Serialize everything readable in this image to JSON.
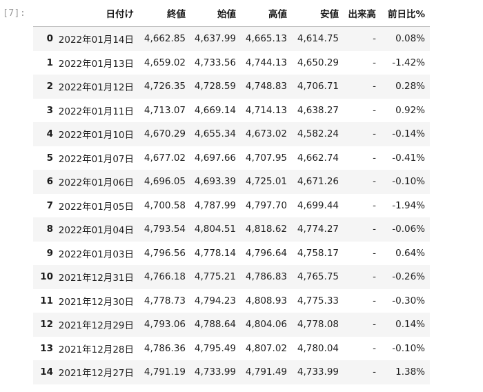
{
  "cell": {
    "prompt": "[7]:"
  },
  "table": {
    "columns": [
      "",
      "日付け",
      "終値",
      "始値",
      "高値",
      "安値",
      "出来高",
      "前日比%"
    ],
    "rows": [
      {
        "index": "0",
        "date": "2022年01月14日",
        "close": "4,662.85",
        "open": "4,637.99",
        "high": "4,665.13",
        "low": "4,614.75",
        "volume": "-",
        "change": "0.08%"
      },
      {
        "index": "1",
        "date": "2022年01月13日",
        "close": "4,659.02",
        "open": "4,733.56",
        "high": "4,744.13",
        "low": "4,650.29",
        "volume": "-",
        "change": "-1.42%"
      },
      {
        "index": "2",
        "date": "2022年01月12日",
        "close": "4,726.35",
        "open": "4,728.59",
        "high": "4,748.83",
        "low": "4,706.71",
        "volume": "-",
        "change": "0.28%"
      },
      {
        "index": "3",
        "date": "2022年01月11日",
        "close": "4,713.07",
        "open": "4,669.14",
        "high": "4,714.13",
        "low": "4,638.27",
        "volume": "-",
        "change": "0.92%"
      },
      {
        "index": "4",
        "date": "2022年01月10日",
        "close": "4,670.29",
        "open": "4,655.34",
        "high": "4,673.02",
        "low": "4,582.24",
        "volume": "-",
        "change": "-0.14%"
      },
      {
        "index": "5",
        "date": "2022年01月07日",
        "close": "4,677.02",
        "open": "4,697.66",
        "high": "4,707.95",
        "low": "4,662.74",
        "volume": "-",
        "change": "-0.41%"
      },
      {
        "index": "6",
        "date": "2022年01月06日",
        "close": "4,696.05",
        "open": "4,693.39",
        "high": "4,725.01",
        "low": "4,671.26",
        "volume": "-",
        "change": "-0.10%"
      },
      {
        "index": "7",
        "date": "2022年01月05日",
        "close": "4,700.58",
        "open": "4,787.99",
        "high": "4,797.70",
        "low": "4,699.44",
        "volume": "-",
        "change": "-1.94%"
      },
      {
        "index": "8",
        "date": "2022年01月04日",
        "close": "4,793.54",
        "open": "4,804.51",
        "high": "4,818.62",
        "low": "4,774.27",
        "volume": "-",
        "change": "-0.06%"
      },
      {
        "index": "9",
        "date": "2022年01月03日",
        "close": "4,796.56",
        "open": "4,778.14",
        "high": "4,796.64",
        "low": "4,758.17",
        "volume": "-",
        "change": "0.64%"
      },
      {
        "index": "10",
        "date": "2021年12月31日",
        "close": "4,766.18",
        "open": "4,775.21",
        "high": "4,786.83",
        "low": "4,765.75",
        "volume": "-",
        "change": "-0.26%"
      },
      {
        "index": "11",
        "date": "2021年12月30日",
        "close": "4,778.73",
        "open": "4,794.23",
        "high": "4,808.93",
        "low": "4,775.33",
        "volume": "-",
        "change": "-0.30%"
      },
      {
        "index": "12",
        "date": "2021年12月29日",
        "close": "4,793.06",
        "open": "4,788.64",
        "high": "4,804.06",
        "low": "4,778.08",
        "volume": "-",
        "change": "0.14%"
      },
      {
        "index": "13",
        "date": "2021年12月28日",
        "close": "4,786.36",
        "open": "4,795.49",
        "high": "4,807.02",
        "low": "4,780.04",
        "volume": "-",
        "change": "-0.10%"
      },
      {
        "index": "14",
        "date": "2021年12月27日",
        "close": "4,791.19",
        "open": "4,733.99",
        "high": "4,791.49",
        "low": "4,733.99",
        "volume": "-",
        "change": "1.38%"
      }
    ]
  }
}
